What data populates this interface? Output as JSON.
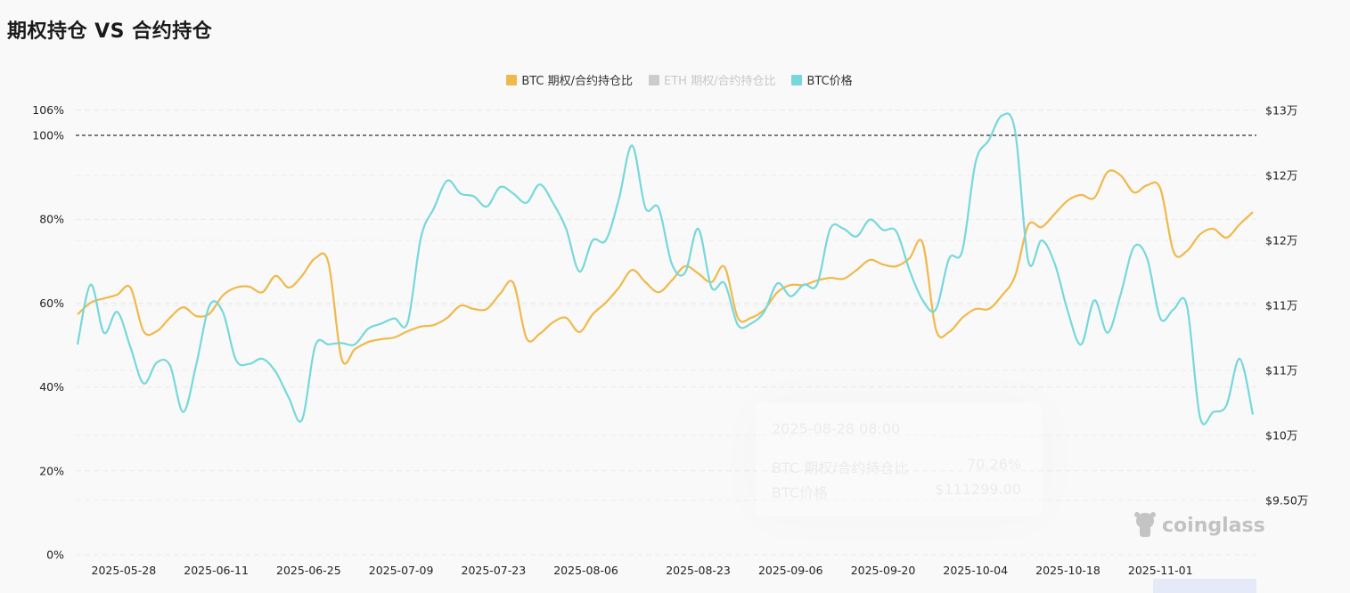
{
  "title": "期权持仓 VS 合约持仓",
  "legend": [
    {
      "label": "BTC  期权/合约持仓比",
      "color": "#f0b94a",
      "active": true
    },
    {
      "label": "ETH  期权/合约持仓比",
      "color": "#cccccc",
      "active": false
    },
    {
      "label": "BTC价格",
      "color": "#76d8db",
      "active": true
    }
  ],
  "tooltip": {
    "time": "2025-08-28 08:00",
    "rows": [
      {
        "label": "BTC 期权/合约持仓比",
        "value": "70.26%"
      },
      {
        "label": "BTC价格",
        "value": "$111299.00"
      }
    ]
  },
  "watermark": "coinglass",
  "chart_data": {
    "type": "line",
    "title": "期权持仓 VS 合约持仓",
    "x_start": "2025-05-21",
    "x_interval_days": 2,
    "x_tick_labels": [
      "2025-05-28",
      "2025-06-11",
      "2025-06-25",
      "2025-07-09",
      "2025-07-23",
      "2025-08-06",
      "2025-08-23",
      "2025-09-06",
      "2025-09-20",
      "2025-10-04",
      "2025-10-18",
      "2025-11-01"
    ],
    "y_left": {
      "ticks": [
        "0%",
        "20%",
        "40%",
        "60%",
        "80%",
        "100%",
        "106%"
      ],
      "tick_values": [
        0,
        20,
        40,
        60,
        80,
        100,
        106
      ],
      "range": [
        0,
        106
      ],
      "reference_line": 100
    },
    "y_right": {
      "ticks": [
        "$9.50万",
        "$10万",
        "$11万",
        "$11万",
        "$12万",
        "$12万",
        "$13万"
      ],
      "tick_values": [
        95000,
        100000,
        105000,
        110000,
        115000,
        120000,
        125000
      ]
    },
    "grid": true,
    "legend_position": "top-center",
    "series": [
      {
        "name": "BTC  期权/合约持仓比",
        "axis": "left",
        "color": "#f0b94a",
        "values": [
          57.3,
          60.1,
          61.1,
          62.0,
          63.7,
          53.3,
          53.3,
          56.5,
          59.0,
          56.9,
          57.5,
          61.8,
          63.7,
          63.9,
          62.6,
          66.5,
          63.7,
          66.5,
          70.7,
          69.6,
          46.7,
          49.0,
          50.7,
          51.4,
          51.8,
          53.3,
          54.4,
          54.8,
          56.5,
          59.4,
          58.6,
          58.6,
          62.2,
          64.8,
          51.6,
          52.7,
          55.4,
          56.5,
          53.1,
          57.3,
          60.1,
          63.7,
          67.9,
          65.0,
          62.6,
          65.4,
          68.8,
          67.1,
          65.0,
          68.6,
          56.5,
          56.5,
          58.4,
          62.6,
          64.3,
          64.3,
          65.4,
          66.0,
          65.8,
          67.9,
          70.3,
          69.2,
          68.8,
          70.7,
          74.3,
          53.7,
          53.1,
          56.5,
          58.6,
          58.6,
          61.8,
          66.5,
          78.6,
          78.1,
          81.3,
          84.5,
          85.8,
          85.1,
          91.3,
          90.4,
          86.4,
          88.1,
          87.3,
          72.2,
          72.4,
          76.4,
          77.7,
          75.6,
          78.8,
          81.7
        ]
      },
      {
        "name": "ETH  期权/合约持仓比",
        "axis": "left",
        "color": "#cccccc",
        "hidden": true,
        "values": []
      },
      {
        "name": "BTC价格",
        "axis": "right",
        "color": "#76d8db",
        "values": [
          107000,
          111600,
          107900,
          109500,
          106800,
          104000,
          105600,
          105400,
          101800,
          105500,
          110000,
          109500,
          105800,
          105500,
          105900,
          104900,
          102900,
          101200,
          106900,
          107000,
          107100,
          107000,
          108200,
          108600,
          109000,
          108700,
          115200,
          117500,
          119600,
          118600,
          118400,
          117600,
          119100,
          118600,
          117900,
          119300,
          117900,
          115900,
          112600,
          115000,
          115000,
          118200,
          122300,
          117500,
          117500,
          113200,
          112500,
          115900,
          111400,
          111700,
          108500,
          108600,
          109500,
          111700,
          110700,
          111600,
          111600,
          115900,
          115900,
          115300,
          116600,
          115800,
          115700,
          112700,
          110400,
          109700,
          113600,
          114200,
          121000,
          122700,
          124600,
          123400,
          113400,
          115000,
          113200,
          109500,
          107000,
          110400,
          107900,
          110900,
          114500,
          113600,
          109000,
          109700,
          110000,
          101400,
          101800,
          102300,
          105900,
          101600
        ]
      }
    ]
  }
}
